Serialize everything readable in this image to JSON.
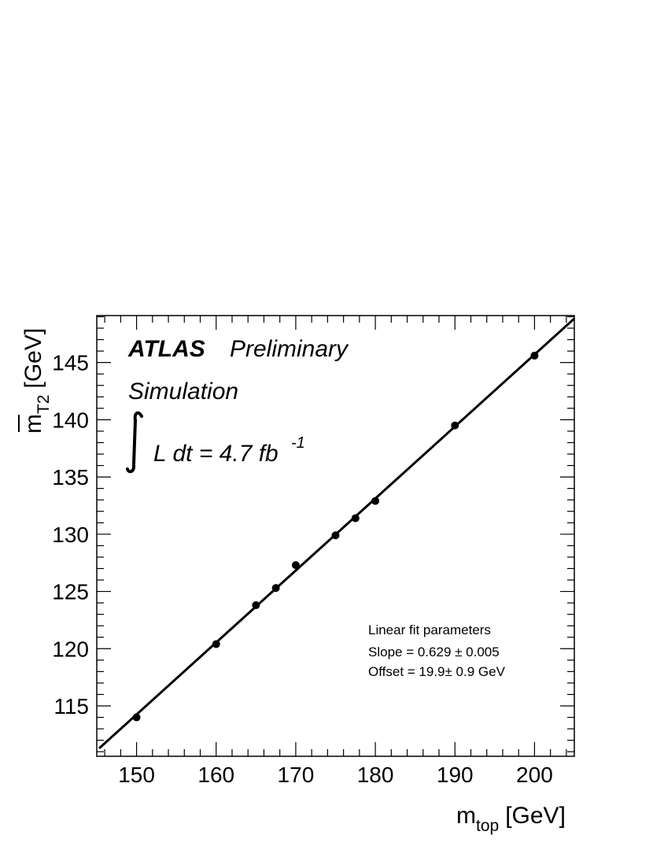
{
  "chart_data": {
    "type": "scatter",
    "x": [
      150,
      160,
      165,
      167.5,
      170,
      175,
      177.5,
      180,
      190,
      200
    ],
    "y": [
      114.0,
      120.4,
      123.8,
      125.3,
      127.3,
      129.9,
      131.4,
      132.9,
      139.5,
      145.6
    ],
    "xlim": [
      145,
      205
    ],
    "ylim": [
      110.6,
      149.1
    ],
    "xticks": [
      150,
      160,
      170,
      180,
      190,
      200
    ],
    "yticks": [
      115,
      120,
      125,
      130,
      135,
      140,
      145
    ],
    "fit": {
      "slope": 0.629,
      "offset": 19.9
    },
    "grid": false,
    "legend": "none"
  },
  "labels": {
    "x_main": "m",
    "x_sub": "top",
    "x_unit": "[GeV]",
    "y_main": "m",
    "y_sub": "T2",
    "y_unit": "[GeV]",
    "atlas": "ATLAS",
    "preliminary": "Preliminary",
    "simulation": "Simulation",
    "lumi_main": "L dt = 4.7 fb",
    "lumi_exp": "-1",
    "fit_title": "Linear fit parameters",
    "fit_slope": "Slope  = 0.629 ± 0.005",
    "fit_offset": "Offset = 19.9± 0.9 GeV"
  }
}
